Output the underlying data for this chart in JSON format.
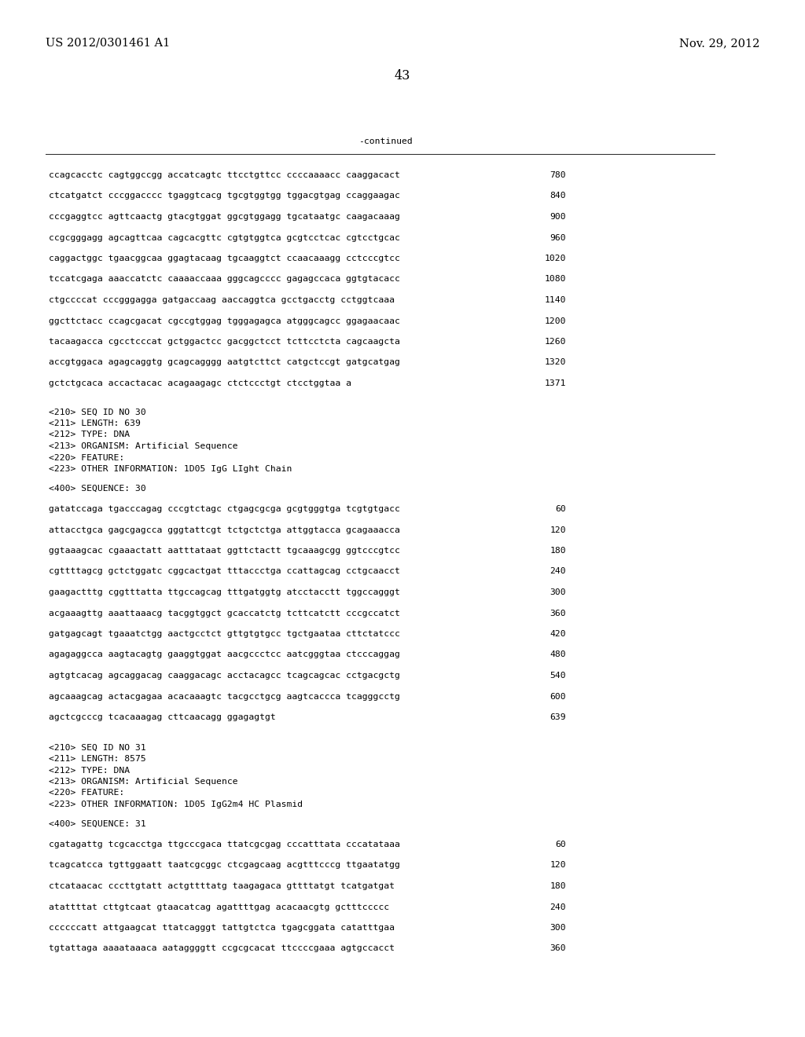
{
  "header_left": "US 2012/0301461 A1",
  "header_right": "Nov. 29, 2012",
  "page_number": "43",
  "continued_label": "-continued",
  "background_color": "#ffffff",
  "text_color": "#000000",
  "lines": [
    {
      "text": "ccagcacctc cagtggccgg accatcagtc ttcctgttcc ccccaaaacc caaggacact",
      "num": "780"
    },
    {
      "text": "ctcatgatct cccggacccc tgaggtcacg tgcgtggtgg tggacgtgag ccaggaagac",
      "num": "840"
    },
    {
      "text": "cccgaggtcc agttcaactg gtacgtggat ggcgtggagg tgcataatgc caagacaaag",
      "num": "900"
    },
    {
      "text": "ccgcgggagg agcagttcaa cagcacgttc cgtgtggtca gcgtcctcac cgtcctgcac",
      "num": "960"
    },
    {
      "text": "caggactggc tgaacggcaa ggagtacaag tgcaaggtct ccaacaaagg cctcccgtcc",
      "num": "1020"
    },
    {
      "text": "tccatcgaga aaaccatctc caaaaccaaa gggcagcccc gagagccaca ggtgtacacc",
      "num": "1080"
    },
    {
      "text": "ctgccccat cccgggagga gatgaccaag aaccaggtca gcctgacctg cctggtcaaa",
      "num": "1140"
    },
    {
      "text": "ggcttctacc ccagcgacat cgccgtggag tgggagagca atgggcagcc ggagaacaac",
      "num": "1200"
    },
    {
      "text": "tacaagacca cgcctcccat gctggactcc gacggctcct tcttcctcta cagcaagcta",
      "num": "1260"
    },
    {
      "text": "accgtggaca agagcaggtg gcagcagggg aatgtcttct catgctccgt gatgcatgag",
      "num": "1320"
    },
    {
      "text": "gctctgcaca accactacac acagaagagc ctctccctgt ctcctggtaa a",
      "num": "1371"
    }
  ],
  "section30_header": [
    "<210> SEQ ID NO 30",
    "<211> LENGTH: 639",
    "<212> TYPE: DNA",
    "<213> ORGANISM: Artificial Sequence",
    "<220> FEATURE:",
    "<223> OTHER INFORMATION: 1D05 IgG LIght Chain"
  ],
  "section30_seq_label": "<400> SEQUENCE: 30",
  "section30_lines": [
    {
      "text": "gatatccaga tgacccagag cccgtctagc ctgagcgcga gcgtgggtga tcgtgtgacc",
      "num": "60"
    },
    {
      "text": "attacctgca gagcgagcca gggtattcgt tctgctctga attggtacca gcagaaacca",
      "num": "120"
    },
    {
      "text": "ggtaaagcac cgaaactatt aatttataat ggttctactt tgcaaagcgg ggtcccgtcc",
      "num": "180"
    },
    {
      "text": "cgttttagcg gctctggatc cggcactgat tttaccctga ccattagcag cctgcaacct",
      "num": "240"
    },
    {
      "text": "gaagactttg cggtttatta ttgccagcag tttgatggtg atcctacctt tggccagggt",
      "num": "300"
    },
    {
      "text": "acgaaagttg aaattaaacg tacggtggct gcaccatctg tcttcatctt cccgccatct",
      "num": "360"
    },
    {
      "text": "gatgagcagt tgaaatctgg aactgcctct gttgtgtgcc tgctgaataa cttctatccc",
      "num": "420"
    },
    {
      "text": "agagaggcca aagtacagtg gaaggtggat aacgccctcc aatcgggtaa ctcccaggag",
      "num": "480"
    },
    {
      "text": "agtgtcacag agcaggacag caaggacagc acctacagcc tcagcagcac cctgacgctg",
      "num": "540"
    },
    {
      "text": "agcaaagcag actacgagaa acacaaagtc tacgcctgcg aagtcaccca tcagggcctg",
      "num": "600"
    },
    {
      "text": "agctcgcccg tcacaaagag cttcaacagg ggagagtgt",
      "num": "639"
    }
  ],
  "section31_header": [
    "<210> SEQ ID NO 31",
    "<211> LENGTH: 8575",
    "<212> TYPE: DNA",
    "<213> ORGANISM: Artificial Sequence",
    "<220> FEATURE:",
    "<223> OTHER INFORMATION: 1D05 IgG2m4 HC Plasmid"
  ],
  "section31_seq_label": "<400> SEQUENCE: 31",
  "section31_lines": [
    {
      "text": "cgatagattg tcgcacctga ttgcccgaca ttatcgcgag cccatttata cccatataaa",
      "num": "60"
    },
    {
      "text": "tcagcatcca tgttggaatt taatcgcggc ctcgagcaag acgtttcccg ttgaatatgg",
      "num": "120"
    },
    {
      "text": "ctcataacac cccttgtatt actgttttatg taagagaca gttttatgt tcatgatgat",
      "num": "180"
    },
    {
      "text": "atattttat cttgtcaat gtaacatcag agattttgag acacaacgtg gctttccccc",
      "num": "240"
    },
    {
      "text": "ccccccatt attgaagcat ttatcagggt tattgtctca tgagcggata catatttgaa",
      "num": "300"
    },
    {
      "text": "tgtattaga aaaataaaca aataggggtt ccgcgcacat ttccccgaaa agtgccacct",
      "num": "360"
    }
  ]
}
